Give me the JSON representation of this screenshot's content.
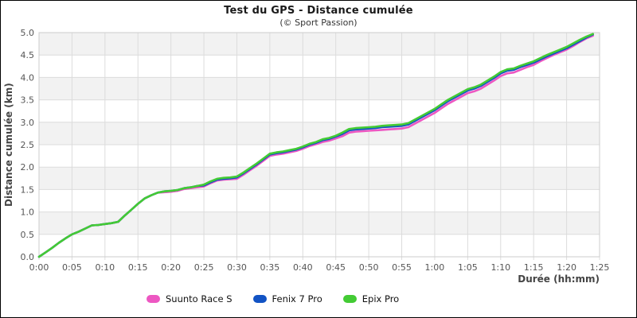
{
  "header": {
    "title": "Test du GPS - Distance cumulée",
    "subtitle": "(© Sport Passion)"
  },
  "axes": {
    "x_label": "Durée (hh:mm)",
    "y_label": "Distance cumulée (km)",
    "x_ticks": [
      "0:00",
      "0:05",
      "0:10",
      "0:15",
      "0:20",
      "0:25",
      "0:30",
      "0:35",
      "0:40",
      "0:45",
      "0:50",
      "0:55",
      "1:00",
      "1:05",
      "1:10",
      "1:15",
      "1:20",
      "1:25"
    ],
    "x_tick_minutes": [
      0,
      5,
      10,
      15,
      20,
      25,
      30,
      35,
      40,
      45,
      50,
      55,
      60,
      65,
      70,
      75,
      80,
      85
    ],
    "y_ticks": [
      "0.0",
      "0.5",
      "1.0",
      "1.5",
      "2.0",
      "2.5",
      "3.0",
      "3.5",
      "4.0",
      "4.5",
      "5.0"
    ],
    "y_tick_values": [
      0,
      0.5,
      1,
      1.5,
      2,
      2.5,
      3,
      3.5,
      4,
      4.5,
      5
    ]
  },
  "style": {
    "band_color": "#f2f2f2",
    "grid_color": "#dcdcdc",
    "plot_border_color": "#cccccc",
    "tick_text_color": "#555555",
    "line_width": 2.6
  },
  "chart_data": {
    "type": "line",
    "title": "Test du GPS - Distance cumulée",
    "subtitle": "(© Sport Passion)",
    "xlabel": "Durée (hh:mm)",
    "ylabel": "Distance cumulée (km)",
    "xlim_minutes": [
      0,
      85
    ],
    "ylim": [
      0,
      5
    ],
    "grid": true,
    "legend_position": "bottom",
    "x_minutes": [
      0,
      1,
      2,
      3,
      4,
      5,
      6,
      7,
      8,
      9,
      10,
      11,
      12,
      13,
      14,
      15,
      16,
      17,
      18,
      19,
      20,
      21,
      22,
      23,
      24,
      25,
      26,
      27,
      28,
      29,
      30,
      31,
      32,
      33,
      34,
      35,
      36,
      37,
      38,
      39,
      40,
      41,
      42,
      43,
      44,
      45,
      46,
      47,
      48,
      49,
      50,
      51,
      52,
      53,
      54,
      55,
      56,
      57,
      58,
      59,
      60,
      61,
      62,
      63,
      64,
      65,
      66,
      67,
      68,
      69,
      70,
      71,
      72,
      73,
      74,
      75,
      76,
      77,
      78,
      79,
      80,
      81,
      82,
      83,
      84
    ],
    "series": [
      {
        "name": "Suunto Race S",
        "color": "#ed57c2",
        "values": [
          0.0,
          0.1,
          0.2,
          0.31,
          0.41,
          0.5,
          0.56,
          0.63,
          0.7,
          0.71,
          0.73,
          0.75,
          0.78,
          0.92,
          1.05,
          1.18,
          1.3,
          1.37,
          1.43,
          1.44,
          1.45,
          1.47,
          1.51,
          1.53,
          1.55,
          1.57,
          1.64,
          1.7,
          1.72,
          1.73,
          1.74,
          1.83,
          1.93,
          2.03,
          2.14,
          2.25,
          2.28,
          2.3,
          2.33,
          2.36,
          2.41,
          2.47,
          2.51,
          2.56,
          2.59,
          2.64,
          2.69,
          2.77,
          2.79,
          2.8,
          2.81,
          2.82,
          2.83,
          2.84,
          2.85,
          2.86,
          2.89,
          2.97,
          3.05,
          3.13,
          3.21,
          3.31,
          3.41,
          3.49,
          3.57,
          3.65,
          3.69,
          3.75,
          3.84,
          3.93,
          4.03,
          4.09,
          4.11,
          4.17,
          4.23,
          4.28,
          4.36,
          4.43,
          4.5,
          4.56,
          4.62,
          4.7,
          4.79,
          4.87,
          4.93
        ]
      },
      {
        "name": "Fenix 7 Pro",
        "color": "#1253c4",
        "values": [
          0.0,
          0.1,
          0.2,
          0.31,
          0.41,
          0.5,
          0.56,
          0.63,
          0.7,
          0.71,
          0.73,
          0.75,
          0.78,
          0.92,
          1.05,
          1.18,
          1.3,
          1.37,
          1.43,
          1.46,
          1.47,
          1.49,
          1.53,
          1.55,
          1.58,
          1.59,
          1.66,
          1.72,
          1.74,
          1.75,
          1.77,
          1.86,
          1.96,
          2.06,
          2.17,
          2.28,
          2.31,
          2.33,
          2.36,
          2.39,
          2.44,
          2.5,
          2.54,
          2.6,
          2.63,
          2.68,
          2.74,
          2.82,
          2.84,
          2.85,
          2.86,
          2.87,
          2.89,
          2.9,
          2.91,
          2.92,
          2.95,
          3.03,
          3.11,
          3.19,
          3.27,
          3.37,
          3.47,
          3.55,
          3.63,
          3.71,
          3.75,
          3.81,
          3.9,
          3.99,
          4.09,
          4.15,
          4.17,
          4.23,
          4.28,
          4.33,
          4.4,
          4.47,
          4.53,
          4.59,
          4.65,
          4.73,
          4.81,
          4.89,
          4.96
        ]
      },
      {
        "name": "Epix Pro",
        "color": "#43cb34",
        "values": [
          0.0,
          0.1,
          0.2,
          0.31,
          0.41,
          0.5,
          0.56,
          0.63,
          0.7,
          0.71,
          0.73,
          0.75,
          0.78,
          0.92,
          1.05,
          1.18,
          1.3,
          1.37,
          1.43,
          1.46,
          1.47,
          1.49,
          1.53,
          1.55,
          1.58,
          1.61,
          1.68,
          1.74,
          1.76,
          1.77,
          1.79,
          1.88,
          1.98,
          2.08,
          2.19,
          2.3,
          2.33,
          2.35,
          2.38,
          2.41,
          2.46,
          2.52,
          2.56,
          2.62,
          2.65,
          2.7,
          2.77,
          2.85,
          2.87,
          2.88,
          2.89,
          2.9,
          2.92,
          2.93,
          2.94,
          2.95,
          2.98,
          3.06,
          3.14,
          3.22,
          3.3,
          3.4,
          3.5,
          3.58,
          3.66,
          3.74,
          3.78,
          3.84,
          3.93,
          4.02,
          4.12,
          4.18,
          4.2,
          4.26,
          4.31,
          4.36,
          4.43,
          4.5,
          4.56,
          4.62,
          4.68,
          4.76,
          4.84,
          4.91,
          4.97
        ]
      }
    ]
  }
}
